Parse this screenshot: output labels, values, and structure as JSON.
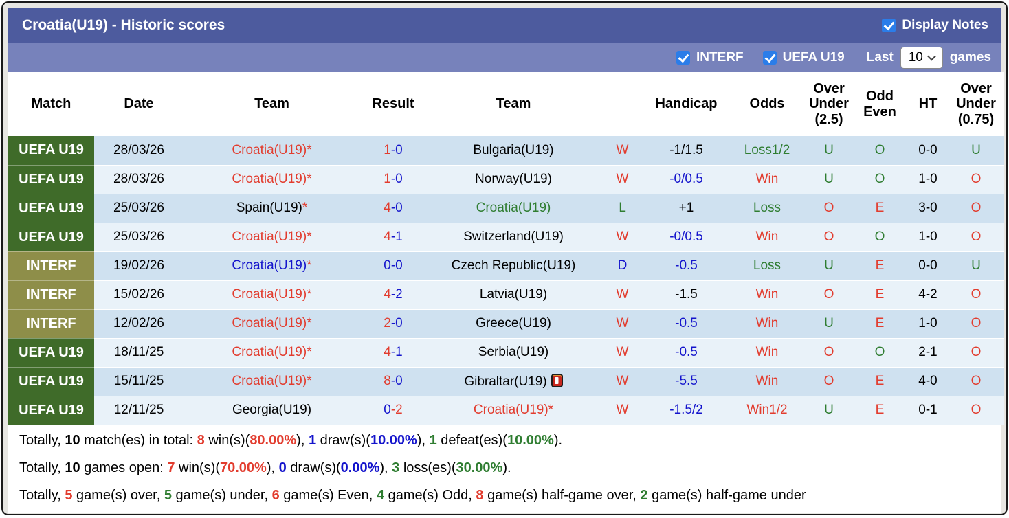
{
  "title_bar": {
    "title": "Croatia(U19) - Historic scores",
    "display_notes": "Display Notes"
  },
  "filter_bar": {
    "interf": "INTERF",
    "uefa": "UEFA U19",
    "last": "Last",
    "value": "10",
    "games": "games"
  },
  "table": {
    "headers": {
      "match": "Match",
      "date": "Date",
      "team_home": "Team",
      "result": "Result",
      "team_away": "Team",
      "wdl": "",
      "handicap": "Handicap",
      "odds": "Odds",
      "over_under_25": "Over\nUnder\n(2.5)",
      "odd_even": "Odd\nEven",
      "ht": "HT",
      "over_under_075": "Over\nUnder\n(0.75)"
    },
    "rows": [
      {
        "league": "UEFA U19",
        "league_type": "uefa",
        "date": "28/03/26",
        "home": {
          "name": "Croatia(U19)",
          "color": "red",
          "star": true
        },
        "score": {
          "home": "1",
          "away": "0",
          "home_color": "red",
          "away_color": "blue"
        },
        "away": {
          "name": "Bulgaria(U19)",
          "color": "black",
          "star": false,
          "icon": false
        },
        "wdl": {
          "text": "W",
          "color": "red"
        },
        "handicap": {
          "text": "-1/1.5",
          "color": "black"
        },
        "odds": {
          "text": "Loss1/2",
          "color": "green"
        },
        "ou25": {
          "text": "U",
          "color": "green"
        },
        "oddeven": {
          "text": "O",
          "color": "green"
        },
        "ht": "0-0",
        "ou075": {
          "text": "U",
          "color": "green"
        }
      },
      {
        "league": "UEFA U19",
        "league_type": "uefa",
        "date": "28/03/26",
        "home": {
          "name": "Croatia(U19)",
          "color": "red",
          "star": true
        },
        "score": {
          "home": "1",
          "away": "0",
          "home_color": "red",
          "away_color": "blue"
        },
        "away": {
          "name": "Norway(U19)",
          "color": "black",
          "star": false,
          "icon": false
        },
        "wdl": {
          "text": "W",
          "color": "red"
        },
        "handicap": {
          "text": "-0/0.5",
          "color": "blue"
        },
        "odds": {
          "text": "Win",
          "color": "red"
        },
        "ou25": {
          "text": "U",
          "color": "green"
        },
        "oddeven": {
          "text": "O",
          "color": "green"
        },
        "ht": "1-0",
        "ou075": {
          "text": "O",
          "color": "red"
        }
      },
      {
        "league": "UEFA U19",
        "league_type": "uefa",
        "date": "25/03/26",
        "home": {
          "name": "Spain(U19)",
          "color": "black",
          "star": true
        },
        "score": {
          "home": "4",
          "away": "0",
          "home_color": "red",
          "away_color": "blue"
        },
        "away": {
          "name": "Croatia(U19)",
          "color": "green",
          "star": false,
          "icon": false
        },
        "wdl": {
          "text": "L",
          "color": "green"
        },
        "handicap": {
          "text": "+1",
          "color": "black"
        },
        "odds": {
          "text": "Loss",
          "color": "green"
        },
        "ou25": {
          "text": "O",
          "color": "red"
        },
        "oddeven": {
          "text": "E",
          "color": "red"
        },
        "ht": "3-0",
        "ou075": {
          "text": "O",
          "color": "red"
        }
      },
      {
        "league": "UEFA U19",
        "league_type": "uefa",
        "date": "25/03/26",
        "home": {
          "name": "Croatia(U19)",
          "color": "red",
          "star": true
        },
        "score": {
          "home": "4",
          "away": "1",
          "home_color": "red",
          "away_color": "blue"
        },
        "away": {
          "name": "Switzerland(U19)",
          "color": "black",
          "star": false,
          "icon": false
        },
        "wdl": {
          "text": "W",
          "color": "red"
        },
        "handicap": {
          "text": "-0/0.5",
          "color": "blue"
        },
        "odds": {
          "text": "Win",
          "color": "red"
        },
        "ou25": {
          "text": "O",
          "color": "red"
        },
        "oddeven": {
          "text": "O",
          "color": "green"
        },
        "ht": "1-0",
        "ou075": {
          "text": "O",
          "color": "red"
        }
      },
      {
        "league": "INTERF",
        "league_type": "interf",
        "date": "19/02/26",
        "home": {
          "name": "Croatia(U19)",
          "color": "blue",
          "star": true
        },
        "score": {
          "home": "0",
          "away": "0",
          "home_color": "blue",
          "away_color": "blue"
        },
        "away": {
          "name": "Czech Republic(U19)",
          "color": "black",
          "star": false,
          "icon": false
        },
        "wdl": {
          "text": "D",
          "color": "blue"
        },
        "handicap": {
          "text": "-0.5",
          "color": "blue"
        },
        "odds": {
          "text": "Loss",
          "color": "green"
        },
        "ou25": {
          "text": "U",
          "color": "green"
        },
        "oddeven": {
          "text": "E",
          "color": "red"
        },
        "ht": "0-0",
        "ou075": {
          "text": "U",
          "color": "green"
        }
      },
      {
        "league": "INTERF",
        "league_type": "interf",
        "date": "15/02/26",
        "home": {
          "name": "Croatia(U19)",
          "color": "red",
          "star": true
        },
        "score": {
          "home": "4",
          "away": "2",
          "home_color": "red",
          "away_color": "blue"
        },
        "away": {
          "name": "Latvia(U19)",
          "color": "black",
          "star": false,
          "icon": false
        },
        "wdl": {
          "text": "W",
          "color": "red"
        },
        "handicap": {
          "text": "-1.5",
          "color": "black"
        },
        "odds": {
          "text": "Win",
          "color": "red"
        },
        "ou25": {
          "text": "O",
          "color": "red"
        },
        "oddeven": {
          "text": "E",
          "color": "red"
        },
        "ht": "4-2",
        "ou075": {
          "text": "O",
          "color": "red"
        }
      },
      {
        "league": "INTERF",
        "league_type": "interf",
        "date": "12/02/26",
        "home": {
          "name": "Croatia(U19)",
          "color": "red",
          "star": true
        },
        "score": {
          "home": "2",
          "away": "0",
          "home_color": "red",
          "away_color": "blue"
        },
        "away": {
          "name": "Greece(U19)",
          "color": "black",
          "star": false,
          "icon": false
        },
        "wdl": {
          "text": "W",
          "color": "red"
        },
        "handicap": {
          "text": "-0.5",
          "color": "blue"
        },
        "odds": {
          "text": "Win",
          "color": "red"
        },
        "ou25": {
          "text": "U",
          "color": "green"
        },
        "oddeven": {
          "text": "E",
          "color": "red"
        },
        "ht": "1-0",
        "ou075": {
          "text": "O",
          "color": "red"
        }
      },
      {
        "league": "UEFA U19",
        "league_type": "uefa",
        "date": "18/11/25",
        "home": {
          "name": "Croatia(U19)",
          "color": "red",
          "star": true
        },
        "score": {
          "home": "4",
          "away": "1",
          "home_color": "red",
          "away_color": "blue"
        },
        "away": {
          "name": "Serbia(U19)",
          "color": "black",
          "star": false,
          "icon": false
        },
        "wdl": {
          "text": "W",
          "color": "red"
        },
        "handicap": {
          "text": "-0.5",
          "color": "blue"
        },
        "odds": {
          "text": "Win",
          "color": "red"
        },
        "ou25": {
          "text": "O",
          "color": "red"
        },
        "oddeven": {
          "text": "O",
          "color": "green"
        },
        "ht": "2-1",
        "ou075": {
          "text": "O",
          "color": "red"
        }
      },
      {
        "league": "UEFA U19",
        "league_type": "uefa",
        "date": "15/11/25",
        "home": {
          "name": "Croatia(U19)",
          "color": "red",
          "star": true
        },
        "score": {
          "home": "8",
          "away": "0",
          "home_color": "red",
          "away_color": "blue"
        },
        "away": {
          "name": "Gibraltar(U19)",
          "color": "black",
          "star": false,
          "icon": true
        },
        "wdl": {
          "text": "W",
          "color": "red"
        },
        "handicap": {
          "text": "-5.5",
          "color": "blue"
        },
        "odds": {
          "text": "Win",
          "color": "red"
        },
        "ou25": {
          "text": "O",
          "color": "red"
        },
        "oddeven": {
          "text": "E",
          "color": "red"
        },
        "ht": "4-0",
        "ou075": {
          "text": "O",
          "color": "red"
        }
      },
      {
        "league": "UEFA U19",
        "league_type": "uefa",
        "date": "12/11/25",
        "home": {
          "name": "Georgia(U19)",
          "color": "black",
          "star": false
        },
        "score": {
          "home": "0",
          "away": "2",
          "home_color": "blue",
          "away_color": "red"
        },
        "away": {
          "name": "Croatia(U19)",
          "color": "red",
          "star": true,
          "icon": false
        },
        "wdl": {
          "text": "W",
          "color": "red"
        },
        "handicap": {
          "text": "-1.5/2",
          "color": "blue"
        },
        "odds": {
          "text": "Win1/2",
          "color": "red"
        },
        "ou25": {
          "text": "U",
          "color": "green"
        },
        "oddeven": {
          "text": "E",
          "color": "red"
        },
        "ht": "0-1",
        "ou075": {
          "text": "O",
          "color": "red"
        }
      }
    ]
  },
  "summary": {
    "lines": [
      [
        {
          "t": "Totally, "
        },
        {
          "t": "10",
          "b": true
        },
        {
          "t": " match(es) in total: "
        },
        {
          "t": "8",
          "b": true,
          "c": "red"
        },
        {
          "t": " win(s)("
        },
        {
          "t": "80.00%",
          "b": true,
          "c": "red"
        },
        {
          "t": "), "
        },
        {
          "t": "1",
          "b": true,
          "c": "blue"
        },
        {
          "t": " draw(s)("
        },
        {
          "t": "10.00%",
          "b": true,
          "c": "blue"
        },
        {
          "t": "), "
        },
        {
          "t": "1",
          "b": true,
          "c": "green"
        },
        {
          "t": " defeat(es)("
        },
        {
          "t": "10.00%",
          "b": true,
          "c": "green"
        },
        {
          "t": ")."
        }
      ],
      [
        {
          "t": "Totally, "
        },
        {
          "t": "10",
          "b": true
        },
        {
          "t": " games open: "
        },
        {
          "t": "7",
          "b": true,
          "c": "red"
        },
        {
          "t": " win(s)("
        },
        {
          "t": "70.00%",
          "b": true,
          "c": "red"
        },
        {
          "t": "), "
        },
        {
          "t": "0",
          "b": true,
          "c": "blue"
        },
        {
          "t": " draw(s)("
        },
        {
          "t": "0.00%",
          "b": true,
          "c": "blue"
        },
        {
          "t": "), "
        },
        {
          "t": "3",
          "b": true,
          "c": "green"
        },
        {
          "t": " loss(es)("
        },
        {
          "t": "30.00%",
          "b": true,
          "c": "green"
        },
        {
          "t": ")."
        }
      ],
      [
        {
          "t": "Totally, "
        },
        {
          "t": "5",
          "b": true,
          "c": "red"
        },
        {
          "t": " game(s) over, "
        },
        {
          "t": "5",
          "b": true,
          "c": "green"
        },
        {
          "t": " game(s) under, "
        },
        {
          "t": "6",
          "b": true,
          "c": "red"
        },
        {
          "t": " game(s) Even, "
        },
        {
          "t": "4",
          "b": true,
          "c": "green"
        },
        {
          "t": " game(s) Odd, "
        },
        {
          "t": "8",
          "b": true,
          "c": "red"
        },
        {
          "t": " game(s) half-game over, "
        },
        {
          "t": "2",
          "b": true,
          "c": "green"
        },
        {
          "t": " game(s) half-game under"
        }
      ]
    ]
  },
  "colors": {
    "accent_red": "#e23c2e",
    "accent_blue": "#1414cc",
    "accent_green": "#2f7d31",
    "title_bar_bg": "#4d5b9e",
    "filter_bar_bg": "#7782bb",
    "uefa_badge_bg": "#3f6b29",
    "interf_badge_bg": "#8e8e49",
    "row_dark_bg": "#cfe1f0",
    "row_light_bg": "#e9f2f9",
    "checkbox_blue": "#2b7de9"
  }
}
